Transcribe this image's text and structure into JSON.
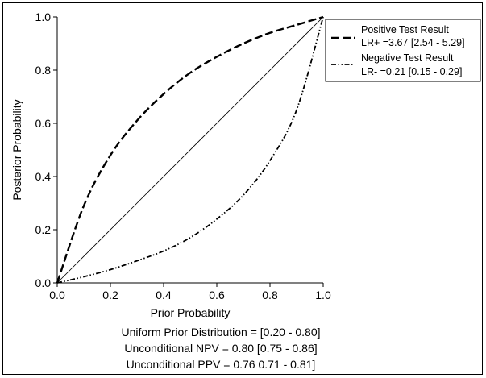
{
  "chart_data": {
    "type": "line",
    "xlabel": "Prior Probability",
    "ylabel": "Posterior Probability",
    "xlim": [
      0,
      1
    ],
    "ylim": [
      0,
      1
    ],
    "xticks": [
      "0.0",
      "0.2",
      "0.4",
      "0.6",
      "0.8",
      "1.0"
    ],
    "yticks": [
      "0.0",
      "0.2",
      "0.4",
      "0.6",
      "0.8",
      "1.0"
    ],
    "grid": false,
    "legend_position": "top-right",
    "x": [
      0,
      0.1,
      0.2,
      0.3,
      0.4,
      0.5,
      0.6,
      0.7,
      0.8,
      0.9,
      1.0
    ],
    "series": [
      {
        "name": "Positive Test Result",
        "label_line2": "LR+ =3.67 [2.54 - 5.29]",
        "style": "dashed",
        "values": [
          0,
          0.29,
          0.48,
          0.61,
          0.71,
          0.79,
          0.85,
          0.9,
          0.94,
          0.97,
          1.0
        ]
      },
      {
        "name": "Negative Test Result",
        "label_line2": "LR- =0.21 [0.15 - 0.29]",
        "style": "dash-dot-dot",
        "values": [
          0,
          0.023,
          0.05,
          0.083,
          0.12,
          0.17,
          0.24,
          0.33,
          0.46,
          0.65,
          1.0
        ]
      },
      {
        "name": "",
        "style": "solid-thin",
        "values": [
          0,
          0.1,
          0.2,
          0.3,
          0.4,
          0.5,
          0.6,
          0.7,
          0.8,
          0.9,
          1.0
        ]
      }
    ],
    "annotations": [
      "Uniform Prior Distribution = [0.20 - 0.80]",
      "Unconditional NPV = 0.80 [0.75 - 0.86]",
      "Unconditional PPV = 0.76 0.71 - 0.81]"
    ]
  }
}
